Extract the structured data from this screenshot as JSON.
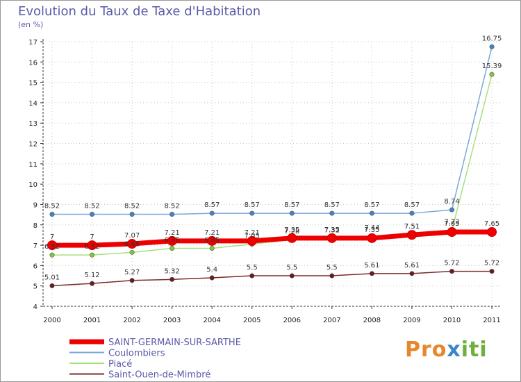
{
  "chart_data": {
    "type": "line",
    "title": "Evolution du Taux de Taxe d'Habitation",
    "unit_label": "(en %)",
    "xlabel": "",
    "ylabel": "",
    "x": [
      "2000",
      "2001",
      "2002",
      "2003",
      "2004",
      "2005",
      "2006",
      "2007",
      "2008",
      "2009",
      "2010",
      "2011"
    ],
    "ylim": [
      4,
      17
    ],
    "yticks": [
      "4",
      "5",
      "6",
      "7",
      "8",
      "9",
      "10",
      "11",
      "12",
      "13",
      "14",
      "15",
      "16",
      "17"
    ],
    "grid": true,
    "series": [
      {
        "name": "SAINT-GERMAIN-SUR-SARTHE",
        "color": "#ee0000",
        "marker_color": "#ee0000",
        "values": [
          7,
          7,
          7.07,
          7.21,
          7.21,
          7.21,
          7.35,
          7.35,
          7.35,
          7.51,
          7.65,
          7.65
        ],
        "labels": [
          "7",
          "7",
          "7.07",
          "7.21",
          "7.21",
          "7.21",
          "7.35",
          "7.35",
          "7.35",
          "7.51",
          "7.65",
          "7.65"
        ],
        "bold": true
      },
      {
        "name": "Coulombiers",
        "color": "#7aa8d8",
        "marker_color": "#3f86c6",
        "values": [
          8.52,
          8.52,
          8.52,
          8.52,
          8.57,
          8.57,
          8.57,
          8.57,
          8.57,
          8.57,
          8.74,
          16.75
        ],
        "labels": [
          "8.52",
          "8.52",
          "8.52",
          "8.52",
          "8.57",
          "8.57",
          "8.57",
          "8.57",
          "8.57",
          "8.57",
          "8.74",
          "16.75"
        ],
        "bold": false
      },
      {
        "name": "Piacé",
        "color": "#a6e07e",
        "marker_color": "#7ccc3a",
        "values": [
          6.52,
          6.52,
          6.65,
          6.85,
          6.85,
          7.05,
          7.28,
          7.32,
          7.44,
          7.51,
          7.73,
          15.39
        ],
        "labels": [
          "6.52",
          "6.52",
          "6.65",
          "6.85",
          "6.85",
          "7.05",
          "7.28",
          "7.32",
          "7.44",
          "7.51",
          "7.73",
          "15.39"
        ],
        "bold": false
      },
      {
        "name": "Saint-Ouen-de-Mimbré",
        "color": "#7a2a2a",
        "marker_color": "#6a1a1a",
        "values": [
          5.01,
          5.12,
          5.27,
          5.32,
          5.4,
          5.5,
          5.5,
          5.5,
          5.61,
          5.61,
          5.72,
          5.72
        ],
        "labels": [
          "5.01",
          "5.12",
          "5.27",
          "5.32",
          "5.4",
          "5.5",
          "5.5",
          "5.5",
          "5.61",
          "5.61",
          "5.72",
          "5.72"
        ],
        "bold": false
      }
    ]
  },
  "brand": {
    "part1": "Pro",
    "part2": "x",
    "part3": "iti"
  }
}
